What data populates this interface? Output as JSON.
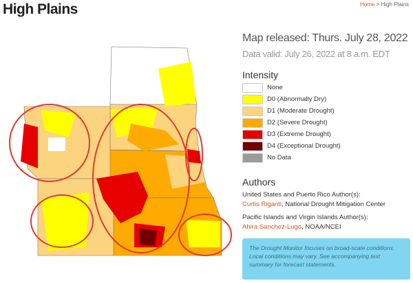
{
  "header": {
    "title": "High Plains",
    "breadcrumb": {
      "home": "Home",
      "separator": ">",
      "current": "High Plains"
    }
  },
  "map_info": {
    "released": "Map released: Thurs. July 28, 2022",
    "valid": "Data valid: July 26, 2022 at 8 a.m. EDT"
  },
  "legend": {
    "title": "Intensity",
    "items": [
      {
        "label": "None",
        "color": "#ffffff"
      },
      {
        "label": "D0 (Abnormally Dry)",
        "color": "#ffff00"
      },
      {
        "label": "D1 (Moderate Drought)",
        "color": "#fcd37f"
      },
      {
        "label": "D2 (Severe Drought)",
        "color": "#ffaa00"
      },
      {
        "label": "D3 (Extreme Drought)",
        "color": "#e60000"
      },
      {
        "label": "D4 (Exceptional Drought)",
        "color": "#730000"
      },
      {
        "label": "No Data",
        "color": "#9b9b9b"
      }
    ]
  },
  "authors": {
    "title": "Authors",
    "us_heading": "United States and Puerto Rico Author(s):",
    "us_name": "Curtis Riganti",
    "us_org": ", National Drought Mitigation Center",
    "pi_heading": "Pacific Islands and Virgin Islands Author(s):",
    "pi_name": "Ahira Sanchez-Lugo",
    "pi_org": ", NOAA/NCEI"
  },
  "note": "The Drought Monitor focuses on broad-scale conditions. Local conditions may vary. See accompanying text summary for forecast statements."
}
